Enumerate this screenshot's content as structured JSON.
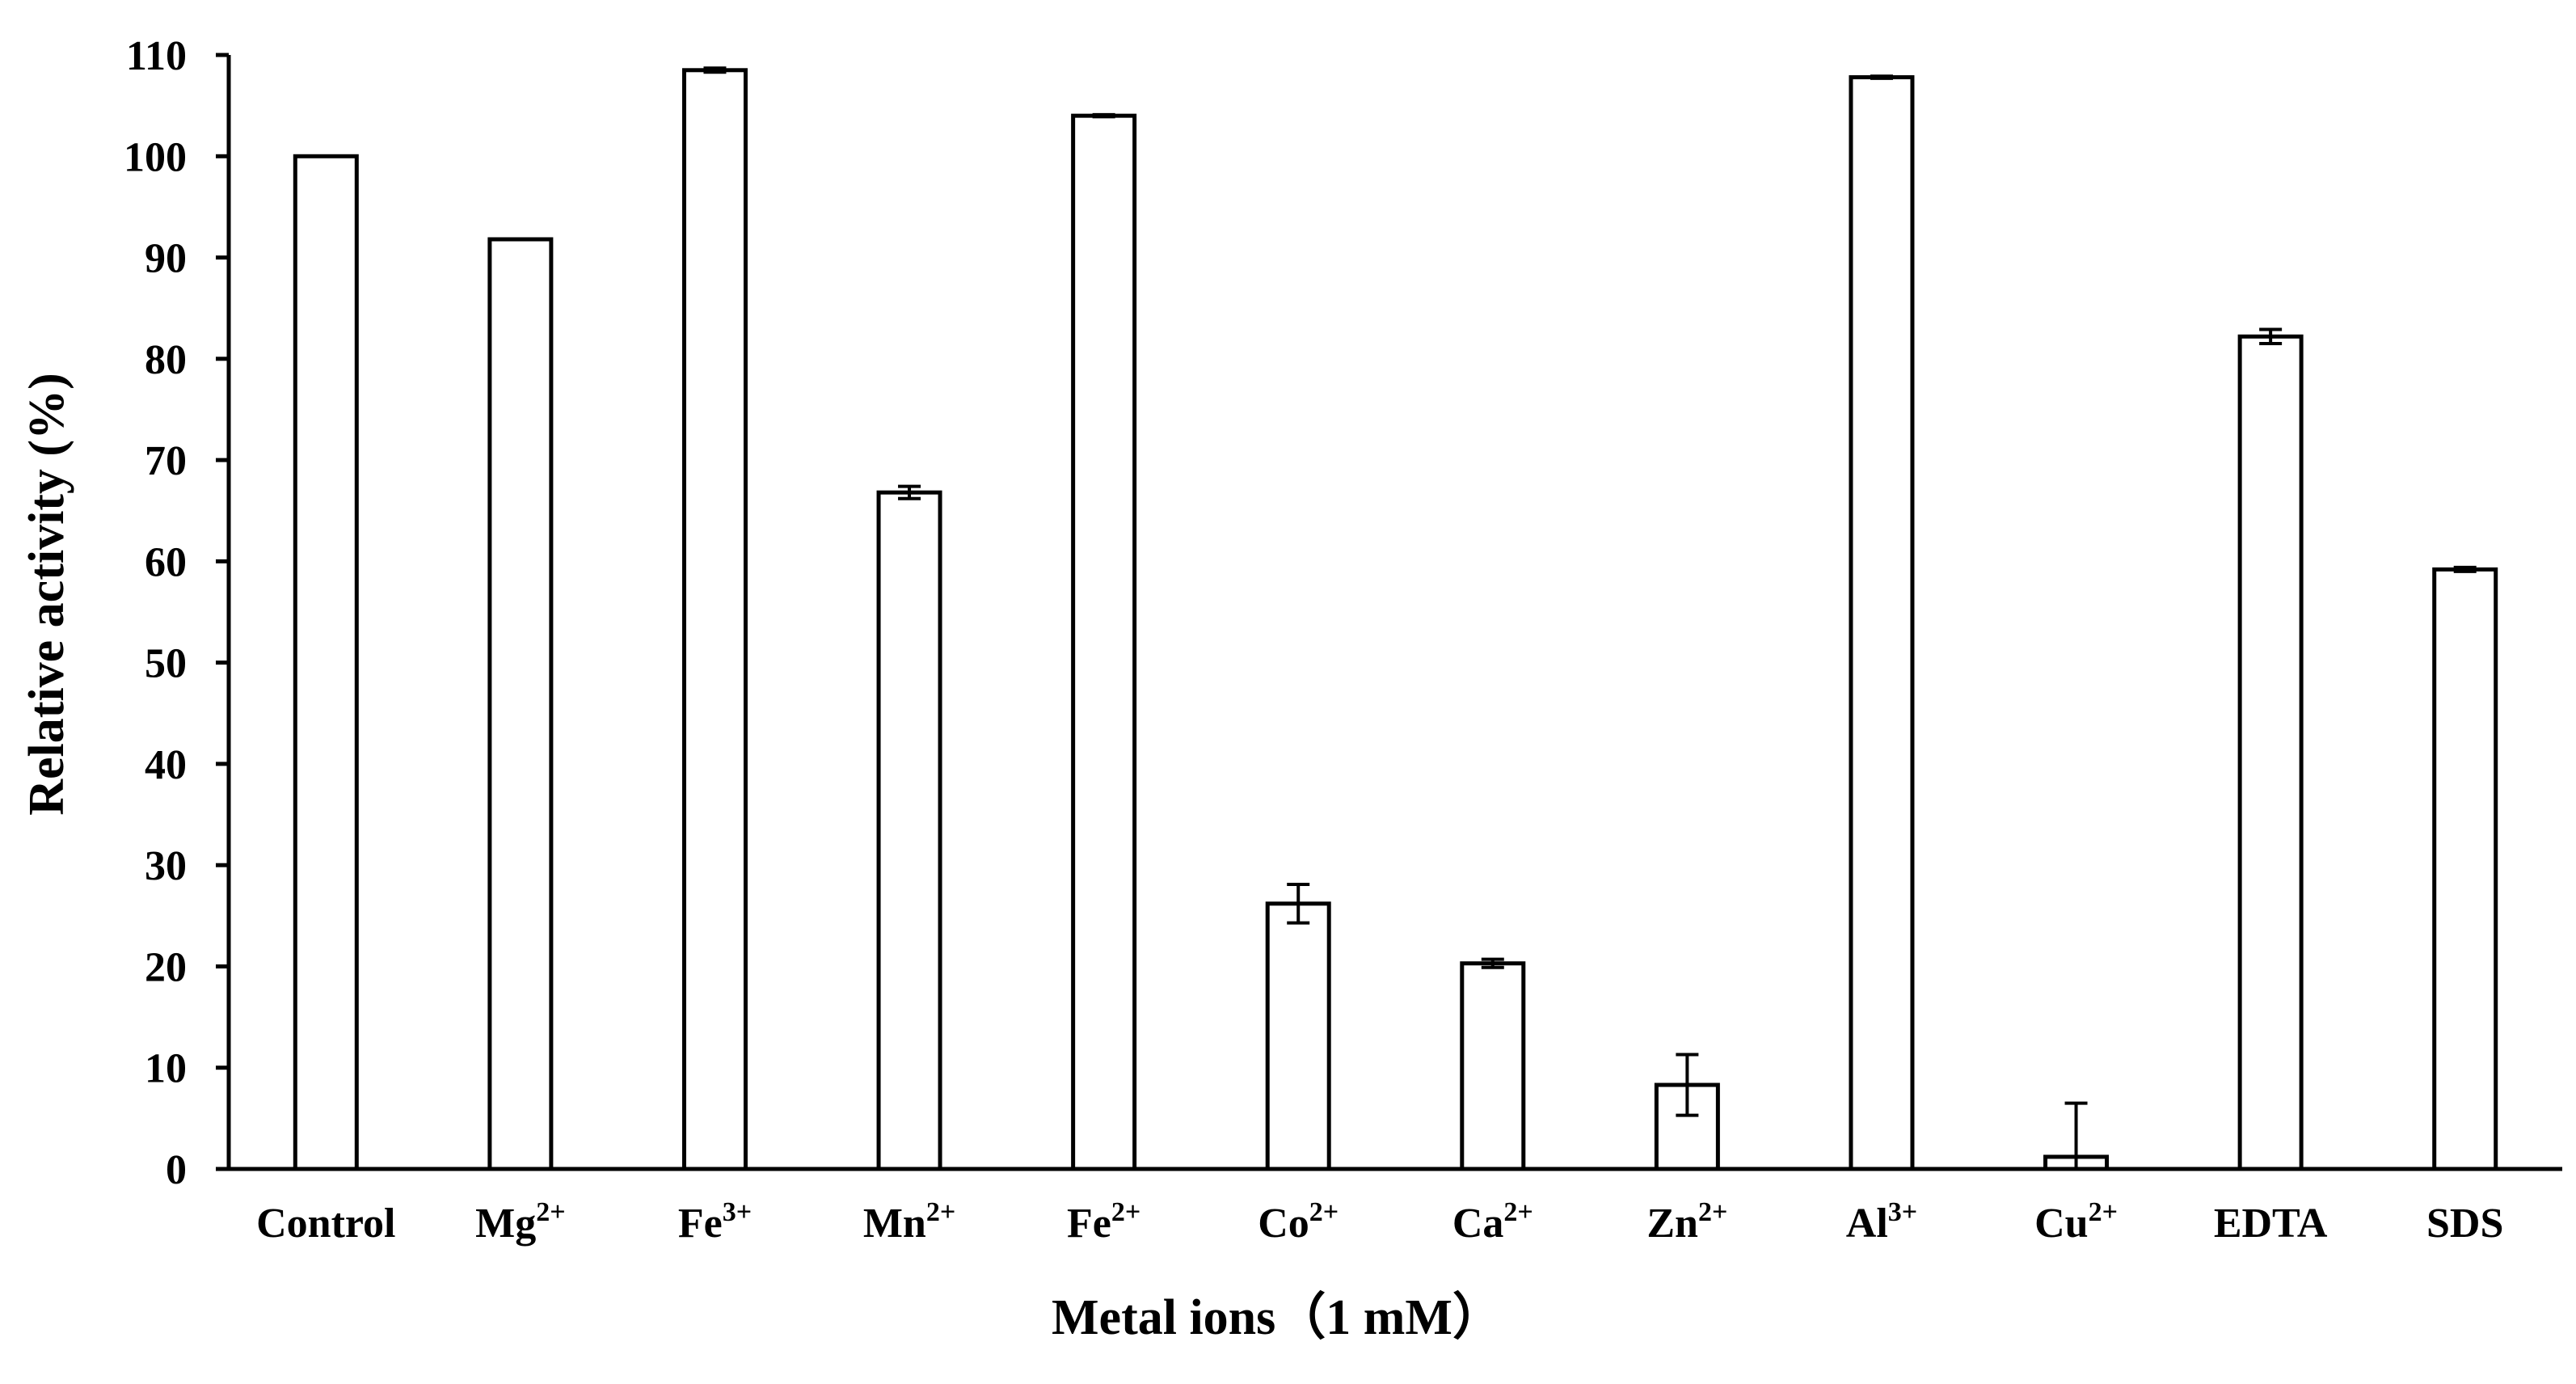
{
  "chart_data": {
    "type": "bar",
    "ylabel": "Relative activity (%)",
    "xlabel": "Metal ions（1 mM）",
    "ylim": [
      0,
      110
    ],
    "y_ticks": [
      0,
      10,
      20,
      30,
      40,
      50,
      60,
      70,
      80,
      90,
      100,
      110
    ],
    "grid": false,
    "categories": [
      {
        "base": "Control",
        "sup": ""
      },
      {
        "base": "Mg",
        "sup": "2+"
      },
      {
        "base": "Fe",
        "sup": "3+"
      },
      {
        "base": "Mn",
        "sup": "2+"
      },
      {
        "base": "Fe",
        "sup": "2+"
      },
      {
        "base": "Co",
        "sup": "2+"
      },
      {
        "base": "Ca",
        "sup": "2+"
      },
      {
        "base": "Zn",
        "sup": "2+"
      },
      {
        "base": "Al",
        "sup": "3+"
      },
      {
        "base": "Cu",
        "sup": "2+"
      },
      {
        "base": "EDTA",
        "sup": ""
      },
      {
        "base": "SDS",
        "sup": ""
      }
    ],
    "values": [
      100,
      91.8,
      108.5,
      66.8,
      104,
      26.2,
      20.3,
      8.3,
      107.8,
      1.2,
      82.2,
      59.2
    ],
    "errors": [
      0,
      0,
      0.2,
      0.6,
      0.1,
      1.9,
      0.4,
      3.0,
      0.1,
      5.3,
      0.7,
      0.2
    ]
  }
}
